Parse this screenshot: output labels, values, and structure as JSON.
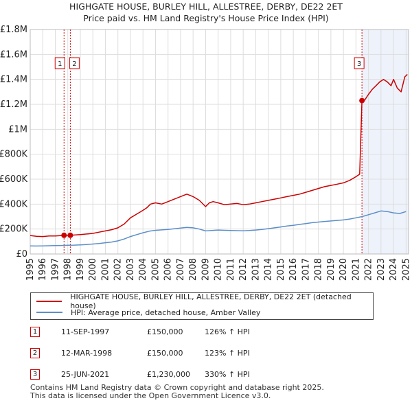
{
  "chart_data": {
    "type": "line",
    "title": "HIGHGATE HOUSE, BURLEY HILL, ALLESTREE, DERBY, DE22 2ET",
    "subtitle": "Price paid vs. HM Land Registry's House Price Index (HPI)",
    "xlim": [
      1995,
      2025.2
    ],
    "ylim": [
      0,
      1800000
    ],
    "x_ticks": [
      "1995",
      "1996",
      "1997",
      "1998",
      "1999",
      "2000",
      "2001",
      "2002",
      "2003",
      "2004",
      "2005",
      "2006",
      "2007",
      "2008",
      "2009",
      "2010",
      "2011",
      "2012",
      "2013",
      "2014",
      "2015",
      "2016",
      "2017",
      "2018",
      "2019",
      "2020",
      "2021",
      "2022",
      "2023",
      "2024",
      "2025"
    ],
    "y_ticks": [
      {
        "value": 0,
        "label": "£0"
      },
      {
        "value": 200000,
        "label": "£200K"
      },
      {
        "value": 400000,
        "label": "£400K"
      },
      {
        "value": 600000,
        "label": "£600K"
      },
      {
        "value": 800000,
        "label": "£800K"
      },
      {
        "value": 1000000,
        "label": "£1M"
      },
      {
        "value": 1200000,
        "label": "£1.2M"
      },
      {
        "value": 1400000,
        "label": "£1.4M"
      },
      {
        "value": 1600000,
        "label": "£1.6M"
      },
      {
        "value": 1800000,
        "label": "£1.8M"
      }
    ],
    "grid": true,
    "shaded_region": {
      "from": 2021.48,
      "to": 2025.2
    },
    "series": [
      {
        "name": "HIGHGATE HOUSE, BURLEY HILL, ALLESTREE, DERBY, DE22 2ET (detached house)",
        "color": "#cc0000",
        "x": [
          1995.0,
          1995.5,
          1996.0,
          1996.5,
          1997.0,
          1997.5,
          1997.7,
          1998.2,
          1998.5,
          1999.0,
          1999.5,
          2000.0,
          2000.5,
          2001.0,
          2001.5,
          2002.0,
          2002.5,
          2003.0,
          2003.5,
          2004.0,
          2004.3,
          2004.6,
          2005.0,
          2005.5,
          2006.0,
          2006.5,
          2007.0,
          2007.5,
          2008.0,
          2008.5,
          2009.0,
          2009.3,
          2009.6,
          2010.0,
          2010.5,
          2011.0,
          2011.5,
          2012.0,
          2012.5,
          2013.0,
          2013.5,
          2014.0,
          2014.5,
          2015.0,
          2015.5,
          2016.0,
          2016.5,
          2017.0,
          2017.5,
          2018.0,
          2018.5,
          2019.0,
          2019.5,
          2020.0,
          2020.5,
          2021.0,
          2021.3,
          2021.48,
          2021.6,
          2021.8,
          2022.0,
          2022.3,
          2022.6,
          2022.9,
          2023.2,
          2023.5,
          2023.8,
          2024.0,
          2024.3,
          2024.6,
          2024.9,
          2025.1
        ],
        "values": [
          148000,
          142000,
          140000,
          144000,
          145000,
          148000,
          150000,
          150000,
          152000,
          155000,
          160000,
          165000,
          175000,
          185000,
          195000,
          210000,
          240000,
          290000,
          320000,
          350000,
          370000,
          400000,
          410000,
          400000,
          420000,
          440000,
          460000,
          480000,
          460000,
          430000,
          380000,
          410000,
          420000,
          410000,
          395000,
          400000,
          405000,
          395000,
          400000,
          410000,
          420000,
          430000,
          440000,
          450000,
          460000,
          470000,
          480000,
          495000,
          510000,
          525000,
          540000,
          550000,
          560000,
          570000,
          590000,
          620000,
          640000,
          1230000,
          1220000,
          1250000,
          1280000,
          1320000,
          1350000,
          1380000,
          1400000,
          1380000,
          1350000,
          1400000,
          1330000,
          1300000,
          1420000,
          1440000
        ]
      },
      {
        "name": "HPI: Average price, detached house, Amber Valley",
        "color": "#5b8ec9",
        "x": [
          1995.0,
          1995.5,
          1996.0,
          1996.5,
          1997.0,
          1997.5,
          1998.0,
          1998.5,
          1999.0,
          1999.5,
          2000.0,
          2000.5,
          2001.0,
          2001.5,
          2002.0,
          2002.5,
          2003.0,
          2003.5,
          2004.0,
          2004.5,
          2005.0,
          2005.5,
          2006.0,
          2006.5,
          2007.0,
          2007.5,
          2008.0,
          2008.5,
          2009.0,
          2009.5,
          2010.0,
          2010.5,
          2011.0,
          2011.5,
          2012.0,
          2012.5,
          2013.0,
          2013.5,
          2014.0,
          2014.5,
          2015.0,
          2015.5,
          2016.0,
          2016.5,
          2017.0,
          2017.5,
          2018.0,
          2018.5,
          2019.0,
          2019.5,
          2020.0,
          2020.5,
          2021.0,
          2021.5,
          2022.0,
          2022.5,
          2023.0,
          2023.5,
          2024.0,
          2024.5,
          2025.0
        ],
        "values": [
          65000,
          64000,
          65000,
          66000,
          67000,
          68000,
          70000,
          71000,
          73000,
          76000,
          80000,
          84000,
          90000,
          96000,
          105000,
          120000,
          140000,
          155000,
          170000,
          183000,
          190000,
          193000,
          197000,
          202000,
          208000,
          213000,
          210000,
          200000,
          185000,
          188000,
          192000,
          190000,
          188000,
          187000,
          186000,
          188000,
          192000,
          197000,
          203000,
          210000,
          217000,
          224000,
          230000,
          237000,
          244000,
          251000,
          256000,
          261000,
          265000,
          269000,
          273000,
          280000,
          290000,
          300000,
          315000,
          330000,
          345000,
          340000,
          330000,
          325000,
          340000
        ]
      }
    ],
    "markers": [
      {
        "label": "1",
        "x": 1997.7,
        "value": 150000
      },
      {
        "label": "2",
        "x": 1998.2,
        "value": 150000
      },
      {
        "label": "3",
        "x": 2021.48,
        "value": 1230000
      }
    ]
  },
  "legend": {
    "property": "HIGHGATE HOUSE, BURLEY HILL, ALLESTREE, DERBY, DE22 2ET (detached house)",
    "hpi": "HPI: Average price, detached house, Amber Valley"
  },
  "transactions": [
    {
      "num": "1",
      "date": "11-SEP-1997",
      "price": "£150,000",
      "hpi": "126% ↑ HPI"
    },
    {
      "num": "2",
      "date": "12-MAR-1998",
      "price": "£150,000",
      "hpi": "123% ↑ HPI"
    },
    {
      "num": "3",
      "date": "25-JUN-2021",
      "price": "£1,230,000",
      "hpi": "330% ↑ HPI"
    }
  ],
  "footer": {
    "line1": "Contains HM Land Registry data © Crown copyright and database right 2025.",
    "line2": "This data is licensed under the Open Government Licence v3.0."
  },
  "colors": {
    "property": "#cc0000",
    "hpi": "#5b8ec9",
    "shade": "#eef2fb",
    "grid": "#dddddd"
  }
}
